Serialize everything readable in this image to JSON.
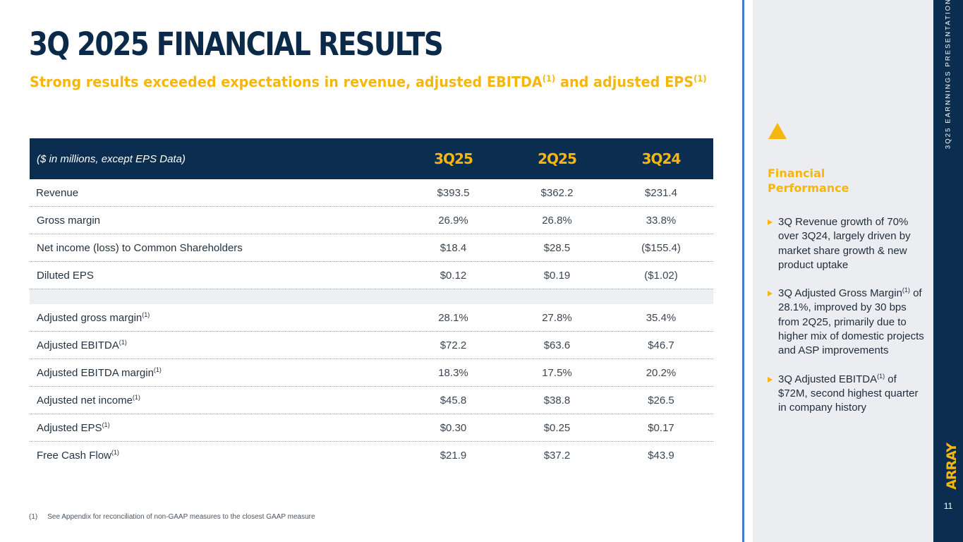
{
  "slide": {
    "title": "3Q 2025 FINANCIAL RESULTS",
    "subtitle_parts": [
      "Strong results exceeded expectations in revenue, adjusted EBITDA",
      "(1)",
      " and adjusted EPS",
      "(1)"
    ]
  },
  "table": {
    "header": [
      "($ in millions, except EPS Data)",
      "3Q25",
      "2Q25",
      "3Q24"
    ],
    "rows": [
      {
        "label": "Revenue",
        "sup": "",
        "values": [
          "$393.5",
          "$362.2",
          "$231.4"
        ]
      },
      {
        "label": "Gross margin",
        "sup": "",
        "values": [
          "26.9%",
          "26.8%",
          "33.8%"
        ]
      },
      {
        "label": "Net income (loss) to Common Shareholders",
        "sup": "",
        "values": [
          "$18.4",
          "$28.5",
          "($155.4)"
        ]
      },
      {
        "label": "Diluted EPS",
        "sup": "",
        "values": [
          "$0.12",
          "$0.19",
          "($1.02)"
        ]
      },
      {
        "label": "Adjusted gross margin",
        "sup": "(1)",
        "values": [
          "28.1%",
          "27.8%",
          "35.4%"
        ]
      },
      {
        "label": "Adjusted EBITDA",
        "sup": "(1)",
        "values": [
          "$72.2",
          "$63.6",
          "$46.7"
        ]
      },
      {
        "label": "Adjusted EBITDA margin",
        "sup": "(1)",
        "values": [
          "18.3%",
          "17.5%",
          "20.2%"
        ]
      },
      {
        "label": "Adjusted net income",
        "sup": "(1)",
        "values": [
          "$45.8",
          "$38.8",
          "$26.5"
        ]
      },
      {
        "label": "Adjusted EPS",
        "sup": "(1)",
        "values": [
          "$0.30",
          "$0.25",
          "$0.17"
        ]
      },
      {
        "label": "Free Cash Flow",
        "sup": "(1)",
        "values": [
          "$21.9",
          "$37.2",
          "$43.9"
        ]
      }
    ]
  },
  "footnote": {
    "marker": "(1)",
    "text": "See Appendix for reconciliation of non-GAAP measures to the closest GAAP measure"
  },
  "sidebar": {
    "heading": "Financial Performance",
    "bullets": [
      {
        "parts": [
          "3Q Revenue growth of 70% over 3Q24, largely driven by market share growth & new product uptake"
        ]
      },
      {
        "parts": [
          "3Q Adjusted Gross Margin",
          "(1)",
          " of 28.1%, improved by 30 bps from 2Q25, primarily due to higher mix of domestic projects and ASP improvements"
        ]
      },
      {
        "parts": [
          "3Q Adjusted EBITDA",
          "(1)",
          " of $72M, second highest quarter in company history"
        ]
      }
    ]
  },
  "rightbar": {
    "vertical_text": "3Q25 EARNNINGS PRESENTATION",
    "logo": "ARRAY",
    "page_number": "11"
  },
  "colors": {
    "navy": "#0b2d4f",
    "gold": "#f5b60f",
    "divider_blue": "#3e7fd0",
    "sidebar_bg": "#ebedf0"
  }
}
